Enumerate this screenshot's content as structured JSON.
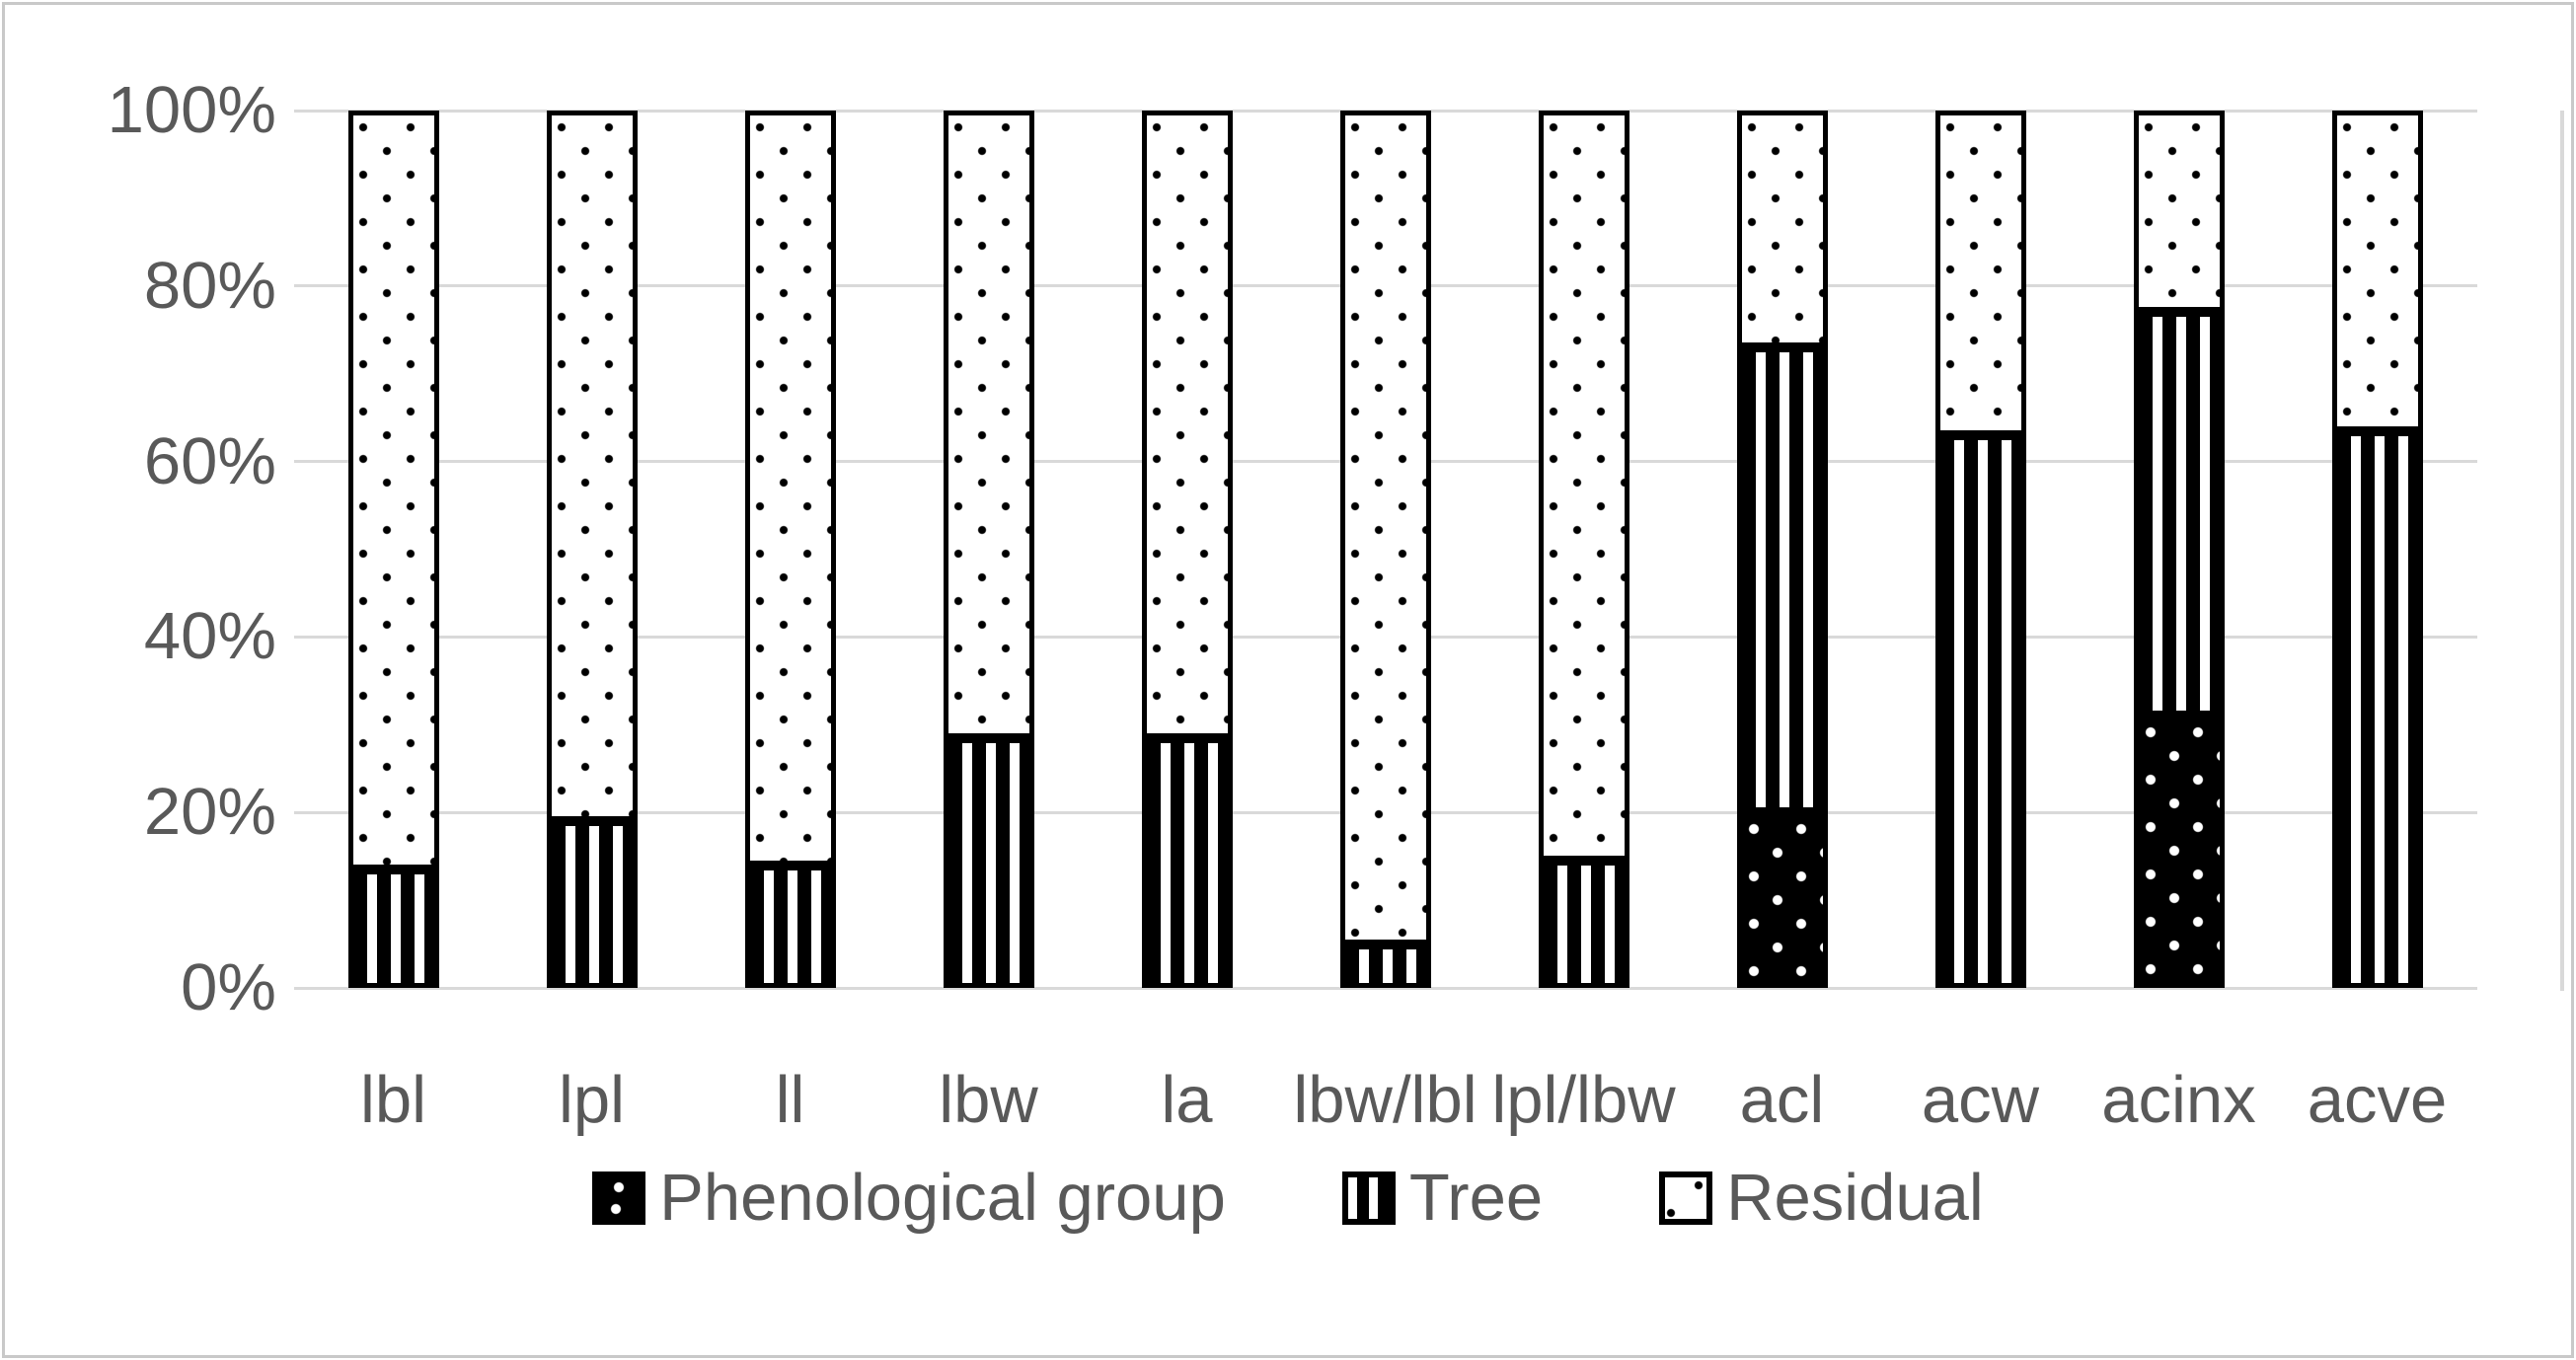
{
  "chart_data": {
    "type": "bar",
    "stacked": true,
    "orientation": "vertical",
    "units": "%",
    "title": "",
    "xlabel": "",
    "ylabel": "",
    "categories": [
      "lbl",
      "lpl",
      "ll",
      "lbw",
      "la",
      "lbw/lbl",
      "lpl/lbw",
      "acl",
      "acw",
      "acinx",
      "acve"
    ],
    "series": [
      {
        "name": "Phenological group",
        "pattern": "black-with-white-dots",
        "values": [
          0,
          0,
          0,
          0,
          0,
          0,
          0,
          20,
          0,
          31,
          0
        ]
      },
      {
        "name": "Tree",
        "pattern": "black-vertical-stripes",
        "values": [
          13.5,
          19,
          14,
          28.5,
          28.5,
          5,
          14.5,
          53,
          63,
          46,
          63.5
        ]
      },
      {
        "name": "Residual",
        "pattern": "white-with-black-dots",
        "values": [
          86.5,
          81,
          86,
          71.5,
          71.5,
          95,
          85.5,
          27,
          37,
          23,
          36.5
        ]
      }
    ],
    "y_ticks": [
      {
        "label": "0%",
        "value": 0
      },
      {
        "label": "20%",
        "value": 20
      },
      {
        "label": "40%",
        "value": 40
      },
      {
        "label": "60%",
        "value": 60
      },
      {
        "label": "80%",
        "value": 80
      },
      {
        "label": "100%",
        "value": 100
      }
    ],
    "ylim": [
      0,
      100
    ],
    "grid": "horizontal",
    "legend_position": "bottom"
  },
  "colors": {
    "axis_text": "#595959",
    "gridline": "#d9d9d9",
    "bar_fill_dark": "#000000",
    "bar_fill_light": "#ffffff",
    "frame_border": "#c9c9c9"
  }
}
